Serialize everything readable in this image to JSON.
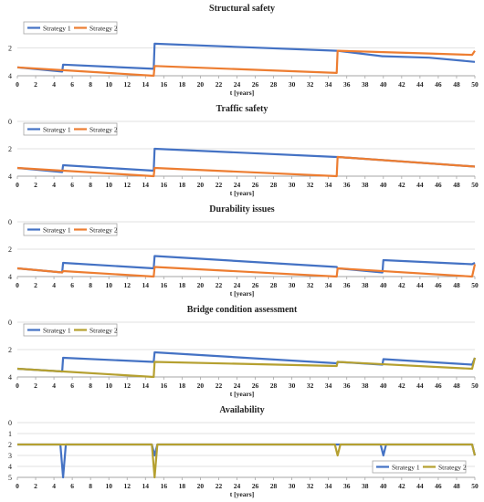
{
  "colors": {
    "strategy1": "#4472C4",
    "strategy2": "#ED7D31",
    "strategy2_alt": "#B5A030",
    "grid": "#d9d9d9",
    "axis": "#a6a6a6",
    "text": "#222222"
  },
  "chart_data": [
    {
      "type": "line",
      "title": "Structural safety",
      "xlabel": "t [years]",
      "ylabel": "",
      "xlim": [
        0,
        50
      ],
      "ylim": [
        0,
        4
      ],
      "y_inverted": true,
      "y_ticks": [
        "2",
        "4"
      ],
      "x_ticks": [
        "0",
        "2",
        "4",
        "6",
        "8",
        "10",
        "12",
        "14",
        "16",
        "18",
        "20",
        "22",
        "24",
        "26",
        "28",
        "30",
        "32",
        "34",
        "36",
        "38",
        "40",
        "42",
        "44",
        "46",
        "48",
        "50"
      ],
      "legend_position": "top-left",
      "series": [
        {
          "name": "Strategy 1",
          "color": "strategy1",
          "x": [
            0,
            4.9,
            5,
            14.9,
            15,
            34.9,
            35,
            39.9,
            40,
            45,
            50
          ],
          "y": [
            3.4,
            3.7,
            3.2,
            3.5,
            1.7,
            2.2,
            2.2,
            2.6,
            2.6,
            2.7,
            3.0
          ]
        },
        {
          "name": "Strategy 2",
          "color": "strategy2",
          "x": [
            0,
            4.9,
            5,
            14.9,
            15,
            34.9,
            35,
            40,
            45,
            49.7,
            50
          ],
          "y": [
            3.4,
            3.6,
            3.6,
            4.0,
            3.3,
            3.8,
            2.2,
            2.3,
            2.4,
            2.5,
            2.2
          ]
        }
      ]
    },
    {
      "type": "line",
      "title": "Traffic safety",
      "xlabel": "t [years]",
      "ylabel": "",
      "xlim": [
        0,
        50
      ],
      "ylim": [
        0,
        4
      ],
      "y_inverted": true,
      "y_ticks": [
        "0",
        "2",
        "4"
      ],
      "x_ticks": [
        "0",
        "2",
        "4",
        "6",
        "8",
        "10",
        "12",
        "14",
        "16",
        "18",
        "20",
        "22",
        "24",
        "26",
        "28",
        "30",
        "32",
        "34",
        "36",
        "38",
        "40",
        "42",
        "44",
        "46",
        "48",
        "50"
      ],
      "legend_position": "top-left",
      "series": [
        {
          "name": "Strategy 1",
          "color": "strategy1",
          "x": [
            0,
            4.9,
            5,
            14.9,
            15,
            34.9,
            35,
            50
          ],
          "y": [
            3.4,
            3.7,
            3.2,
            3.6,
            2.0,
            2.6,
            2.6,
            3.3
          ]
        },
        {
          "name": "Strategy 2",
          "color": "strategy2",
          "x": [
            0,
            4.9,
            5,
            14.9,
            15,
            34.9,
            35,
            50
          ],
          "y": [
            3.4,
            3.6,
            3.6,
            4.0,
            3.4,
            4.0,
            2.6,
            3.3
          ]
        }
      ]
    },
    {
      "type": "line",
      "title": "Durability issues",
      "xlabel": "t [years]",
      "ylabel": "",
      "xlim": [
        0,
        50
      ],
      "ylim": [
        0,
        4
      ],
      "y_inverted": true,
      "y_ticks": [
        "0",
        "2",
        "4"
      ],
      "x_ticks": [
        "0",
        "2",
        "4",
        "6",
        "8",
        "10",
        "12",
        "14",
        "16",
        "18",
        "20",
        "22",
        "24",
        "26",
        "28",
        "30",
        "32",
        "34",
        "36",
        "38",
        "40",
        "42",
        "44",
        "46",
        "48",
        "50"
      ],
      "legend_position": "top-left",
      "series": [
        {
          "name": "Strategy 1",
          "color": "strategy1",
          "x": [
            0,
            4.9,
            5,
            14.9,
            15,
            34.9,
            35,
            39.9,
            40,
            49.7,
            50
          ],
          "y": [
            3.4,
            3.7,
            3.0,
            3.4,
            2.5,
            3.3,
            3.4,
            3.7,
            2.8,
            3.1,
            3.0
          ]
        },
        {
          "name": "Strategy 2",
          "color": "strategy2",
          "x": [
            0,
            4.9,
            5,
            14.9,
            15,
            34.9,
            35,
            49.7,
            50
          ],
          "y": [
            3.4,
            3.7,
            3.6,
            4.0,
            3.3,
            4.0,
            3.4,
            4.0,
            3.1
          ]
        }
      ]
    },
    {
      "type": "line",
      "title": "Bridge condition assessment",
      "xlabel": "t [years]",
      "ylabel": "",
      "xlim": [
        0,
        50
      ],
      "ylim": [
        0,
        4
      ],
      "y_inverted": true,
      "y_ticks": [
        "0",
        "2",
        "4"
      ],
      "x_ticks": [
        "0",
        "2",
        "4",
        "6",
        "8",
        "10",
        "12",
        "14",
        "16",
        "18",
        "20",
        "22",
        "24",
        "26",
        "28",
        "30",
        "32",
        "34",
        "36",
        "38",
        "40",
        "42",
        "44",
        "46",
        "48",
        "50"
      ],
      "legend_position": "top-left",
      "series": [
        {
          "name": "Strategy 1",
          "color": "strategy1",
          "x": [
            0,
            4.9,
            5,
            14.9,
            15,
            34.9,
            35,
            39.9,
            40,
            49.7,
            50
          ],
          "y": [
            3.4,
            3.6,
            2.6,
            2.9,
            2.2,
            3.0,
            2.9,
            3.1,
            2.7,
            3.1,
            2.6
          ]
        },
        {
          "name": "Strategy 2",
          "color": "strategy2_alt",
          "x": [
            0,
            4.9,
            5,
            14.9,
            15,
            34.9,
            35,
            49.7,
            50
          ],
          "y": [
            3.4,
            3.6,
            3.6,
            4.0,
            2.9,
            3.2,
            2.9,
            3.4,
            2.6
          ]
        }
      ]
    },
    {
      "type": "line",
      "title": "Availability",
      "xlabel": "t [years]",
      "ylabel": "",
      "xlim": [
        0,
        50
      ],
      "ylim": [
        0,
        5
      ],
      "y_inverted": true,
      "y_ticks": [
        "0",
        "1",
        "2",
        "3",
        "4",
        "5"
      ],
      "x_ticks": [
        "0",
        "2",
        "4",
        "6",
        "8",
        "10",
        "12",
        "14",
        "16",
        "18",
        "20",
        "22",
        "24",
        "26",
        "28",
        "30",
        "32",
        "34",
        "36",
        "38",
        "40",
        "42",
        "44",
        "46",
        "48",
        "50"
      ],
      "legend_position": "bottom-right",
      "series": [
        {
          "name": "Strategy 1",
          "color": "strategy1",
          "x": [
            0,
            4.7,
            5,
            5.3,
            14.7,
            15,
            15.3,
            39.7,
            40,
            40.3,
            49.7,
            50
          ],
          "y": [
            2,
            2,
            5,
            2,
            2,
            3,
            2,
            2,
            3,
            2,
            2,
            3
          ]
        },
        {
          "name": "Strategy 2",
          "color": "strategy2_alt",
          "x": [
            0,
            14.7,
            15,
            15.3,
            34.7,
            35,
            35.3,
            49.7,
            50
          ],
          "y": [
            2,
            2,
            5,
            2,
            2,
            3,
            2,
            2,
            3
          ]
        }
      ]
    }
  ]
}
